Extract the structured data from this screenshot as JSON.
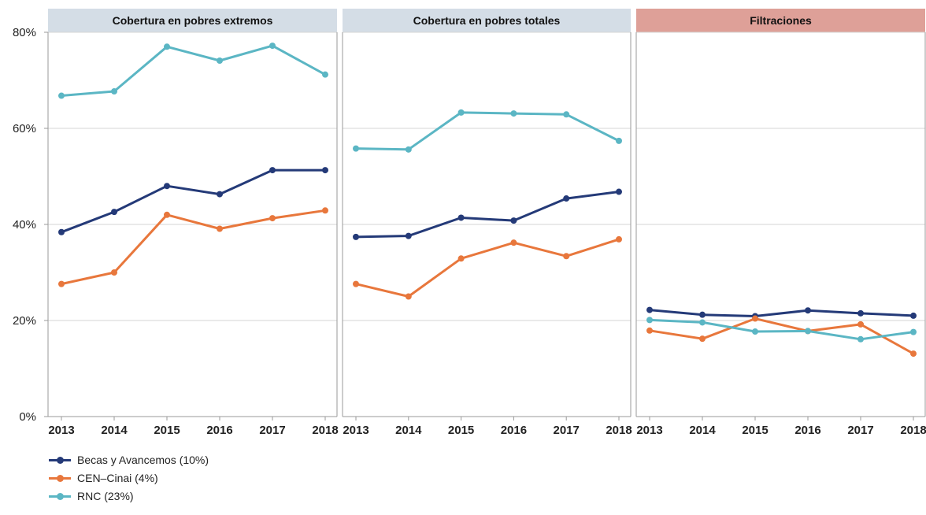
{
  "chart_data": {
    "type": "line",
    "x": [
      "2013",
      "2014",
      "2015",
      "2016",
      "2017",
      "2018"
    ],
    "y_ticks": [
      "0%",
      "20%",
      "40%",
      "60%",
      "80%"
    ],
    "ylim": [
      0,
      80
    ],
    "grid": true,
    "legend_position": "bottom-left",
    "panels": [
      {
        "title": "Cobertura en pobres extremos",
        "header_color": "#d4dde6",
        "series": [
          {
            "name": "Becas y Avancemos (10%)",
            "color": "#243a78",
            "values": [
              38.4,
              42.6,
              48.0,
              46.3,
              51.3,
              51.3
            ]
          },
          {
            "name": "CEN–Cinai (4%)",
            "color": "#e8773c",
            "values": [
              27.6,
              30.0,
              42.0,
              39.1,
              41.3,
              42.9
            ]
          },
          {
            "name": "RNC (23%)",
            "color": "#5bb6c4",
            "values": [
              66.8,
              67.7,
              77.0,
              74.1,
              77.2,
              71.2
            ]
          }
        ]
      },
      {
        "title": "Cobertura en pobres totales",
        "header_color": "#d4dde6",
        "series": [
          {
            "name": "Becas y Avancemos (10%)",
            "color": "#243a78",
            "values": [
              37.4,
              37.6,
              41.4,
              40.8,
              45.4,
              46.8
            ]
          },
          {
            "name": "CEN–Cinai (4%)",
            "color": "#e8773c",
            "values": [
              27.6,
              25.0,
              32.9,
              36.2,
              33.4,
              36.9
            ]
          },
          {
            "name": "RNC (23%)",
            "color": "#5bb6c4",
            "values": [
              55.8,
              55.6,
              63.3,
              63.1,
              62.9,
              57.4
            ]
          }
        ]
      },
      {
        "title": "Filtraciones",
        "header_color": "#dea098",
        "series": [
          {
            "name": "Becas y Avancemos (10%)",
            "color": "#243a78",
            "values": [
              22.2,
              21.2,
              20.9,
              22.1,
              21.5,
              21.0
            ]
          },
          {
            "name": "CEN–Cinai (4%)",
            "color": "#e8773c",
            "values": [
              17.9,
              16.2,
              20.4,
              17.8,
              19.2,
              13.1
            ]
          },
          {
            "name": "RNC (23%)",
            "color": "#5bb6c4",
            "values": [
              20.1,
              19.6,
              17.7,
              17.8,
              16.1,
              17.6
            ]
          }
        ]
      }
    ],
    "legend": [
      {
        "label": "Becas y Avancemos (10%)",
        "color": "#243a78"
      },
      {
        "label": "CEN–Cinai (4%)",
        "color": "#e8773c"
      },
      {
        "label": "RNC (23%)",
        "color": "#5bb6c4"
      }
    ]
  }
}
